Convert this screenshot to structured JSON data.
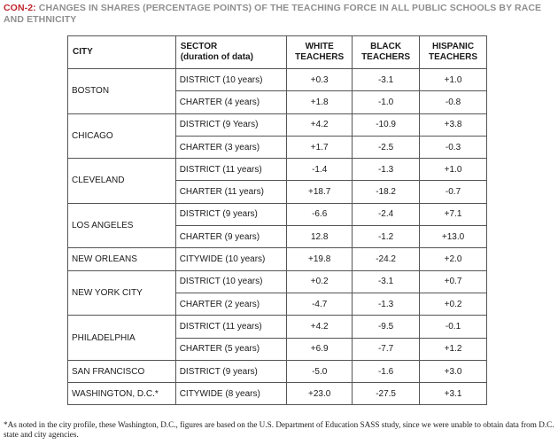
{
  "title": {
    "code": "CON-2:",
    "text": " CHANGES IN SHARES (PERCENTAGE POINTS) OF THE TEACHING FORCE IN ALL PUBLIC SCHOOLS BY RACE AND ETHNICITY"
  },
  "headers": {
    "city": "CITY",
    "sector_line1": "SECTOR",
    "sector_line2": "(duration of data)",
    "white_line1": "WHITE",
    "white_line2": "TEACHERS",
    "black_line1": "BLACK",
    "black_line2": "TEACHERS",
    "hispanic_line1": "HISPANIC",
    "hispanic_line2": "TEACHERS"
  },
  "cities": [
    {
      "city": "BOSTON",
      "rows": [
        {
          "sector": "DISTRICT (10 years)",
          "white": "+0.3",
          "black": "-3.1",
          "hispanic": "+1.0"
        },
        {
          "sector": "CHARTER (4 years)",
          "white": "+1.8",
          "black": "-1.0",
          "hispanic": "-0.8"
        }
      ]
    },
    {
      "city": "CHICAGO",
      "rows": [
        {
          "sector": "DISTRICT (9 Years)",
          "white": "+4.2",
          "black": "-10.9",
          "hispanic": "+3.8"
        },
        {
          "sector": "CHARTER (3 years)",
          "white": "+1.7",
          "black": "-2.5",
          "hispanic": "-0.3"
        }
      ]
    },
    {
      "city": "CLEVELAND",
      "rows": [
        {
          "sector": "DISTRICT (11 years)",
          "white": "-1.4",
          "black": "-1.3",
          "hispanic": "+1.0"
        },
        {
          "sector": "CHARTER (11 years)",
          "white": "+18.7",
          "black": "-18.2",
          "hispanic": "-0.7"
        }
      ]
    },
    {
      "city": "LOS ANGELES",
      "rows": [
        {
          "sector": "DISTRICT (9 years)",
          "white": "-6.6",
          "black": "-2.4",
          "hispanic": "+7.1"
        },
        {
          "sector": "CHARTER (9 years)",
          "white": "12.8",
          "black": "-1.2",
          "hispanic": "+13.0"
        }
      ]
    },
    {
      "city": "NEW ORLEANS",
      "rows": [
        {
          "sector": "CITYWIDE (10 years)",
          "white": "+19.8",
          "black": "-24.2",
          "hispanic": "+2.0"
        }
      ]
    },
    {
      "city": "NEW YORK CITY",
      "rows": [
        {
          "sector": "DISTRICT (10 years)",
          "white": "+0.2",
          "black": "-3.1",
          "hispanic": "+0.7"
        },
        {
          "sector": "CHARTER (2 years)",
          "white": "-4.7",
          "black": "-1.3",
          "hispanic": "+0.2"
        }
      ]
    },
    {
      "city": "PHILADELPHIA",
      "rows": [
        {
          "sector": "DISTRICT (11 years)",
          "white": "+4.2",
          "black": "-9.5",
          "hispanic": "-0.1"
        },
        {
          "sector": "CHARTER (5 years)",
          "white": "+6.9",
          "black": "-7.7",
          "hispanic": "+1.2"
        }
      ]
    },
    {
      "city": "SAN FRANCISCO",
      "rows": [
        {
          "sector": "DISTRICT (9 years)",
          "white": "-5.0",
          "black": "-1.6",
          "hispanic": "+3.0"
        }
      ]
    },
    {
      "city": "WASHINGTON, D.C.*",
      "rows": [
        {
          "sector": "CITYWIDE (8 years)",
          "white": "+23.0",
          "black": "-27.5",
          "hispanic": "+3.1"
        }
      ]
    }
  ],
  "footnote": "*As noted in the city profile, these Washington, D.C., figures are based on the U.S. Department of Education SASS study, since we were unable to obtain data from D.C. state and city agencies."
}
